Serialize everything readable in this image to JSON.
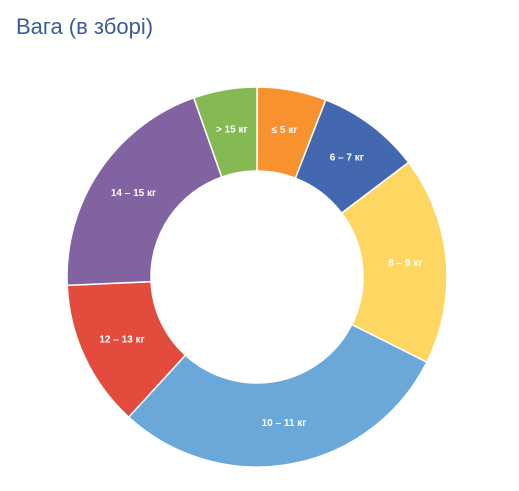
{
  "chart_data": {
    "type": "pie",
    "title": "Вага (в зборі)",
    "categories": [
      "≤ 5 кг",
      "6 – 7 кг",
      "8 – 9 кг",
      "10 – 11 кг",
      "12 – 13 кг",
      "14 – 15 кг",
      "> 15 кг"
    ],
    "values": [
      5.9,
      8.8,
      17.7,
      29.4,
      12.5,
      20.3,
      5.4
    ],
    "colors": [
      "#f7922f",
      "#4468b0",
      "#fdd762",
      "#6ba8da",
      "#e34b3c",
      "#8063a0",
      "#84b954"
    ],
    "donut": true,
    "legend": "none"
  }
}
